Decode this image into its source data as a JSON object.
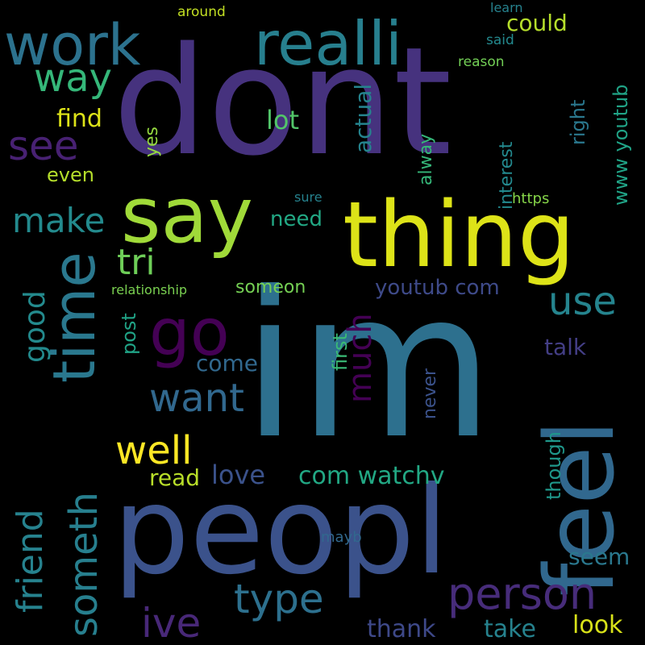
{
  "words": [
    {
      "text": "dont",
      "color": "#46327e"
    },
    {
      "text": "im",
      "color": "#2d708e"
    },
    {
      "text": "peopl",
      "color": "#3b528b"
    },
    {
      "text": "thing",
      "color": "#dde318"
    },
    {
      "text": "say",
      "color": "#a0da39"
    },
    {
      "text": "realli",
      "color": "#277f8e"
    },
    {
      "text": "work",
      "color": "#2c728e"
    },
    {
      "text": "feel",
      "color": "#31688e"
    },
    {
      "text": "time",
      "color": "#2a788e"
    },
    {
      "text": "go",
      "color": "#440154"
    },
    {
      "text": "someth",
      "color": "#277f8e"
    },
    {
      "text": "person",
      "color": "#472c7a"
    },
    {
      "text": "well",
      "color": "#fde725"
    },
    {
      "text": "want",
      "color": "#31688e"
    },
    {
      "text": "friend",
      "color": "#26828e"
    },
    {
      "text": "type",
      "color": "#2d708e"
    },
    {
      "text": "ive",
      "color": "#482878"
    },
    {
      "text": "make",
      "color": "#238a8d"
    },
    {
      "text": "see",
      "color": "#482173"
    },
    {
      "text": "way",
      "color": "#35b779"
    },
    {
      "text": "tri",
      "color": "#6ece58"
    },
    {
      "text": "use",
      "color": "#25848e"
    },
    {
      "text": "much",
      "color": "#440154"
    },
    {
      "text": "good",
      "color": "#238a8d"
    },
    {
      "text": "could",
      "color": "#b5de2b"
    },
    {
      "text": "com watchv",
      "color": "#22a884"
    },
    {
      "text": "youtub com",
      "color": "#3e4a89"
    },
    {
      "text": "look",
      "color": "#d8e219"
    },
    {
      "text": "take",
      "color": "#26828e"
    },
    {
      "text": "thank",
      "color": "#3e4989"
    },
    {
      "text": "love",
      "color": "#3b528b"
    },
    {
      "text": "read",
      "color": "#b8de29"
    },
    {
      "text": "come",
      "color": "#31688e"
    },
    {
      "text": "find",
      "color": "#dde318"
    },
    {
      "text": "lot",
      "color": "#52c569"
    },
    {
      "text": "need",
      "color": "#22a884"
    },
    {
      "text": "someon",
      "color": "#75d054"
    },
    {
      "text": "seem",
      "color": "#2a788e"
    },
    {
      "text": "talk",
      "color": "#433e85"
    },
    {
      "text": "actual",
      "color": "#25848e"
    },
    {
      "text": "first",
      "color": "#3aba76"
    },
    {
      "text": "post",
      "color": "#20a386"
    },
    {
      "text": "even",
      "color": "#b5de2b"
    },
    {
      "text": "yes",
      "color": "#95d840"
    },
    {
      "text": "www youtub",
      "color": "#20a386"
    },
    {
      "text": "right",
      "color": "#2a788e"
    },
    {
      "text": "interest",
      "color": "#23898e"
    },
    {
      "text": "alway",
      "color": "#35b779"
    },
    {
      "text": "though",
      "color": "#1f988b"
    },
    {
      "text": "never",
      "color": "#3b528b"
    },
    {
      "text": "mayb",
      "color": "#31688e"
    },
    {
      "text": "https",
      "color": "#86d549"
    },
    {
      "text": "sure",
      "color": "#26828e"
    },
    {
      "text": "relationship",
      "color": "#7ad151"
    },
    {
      "text": "learn",
      "color": "#26828e"
    },
    {
      "text": "around",
      "color": "#c2df23"
    },
    {
      "text": "said",
      "color": "#23898e"
    },
    {
      "text": "reason",
      "color": "#73d056"
    }
  ]
}
